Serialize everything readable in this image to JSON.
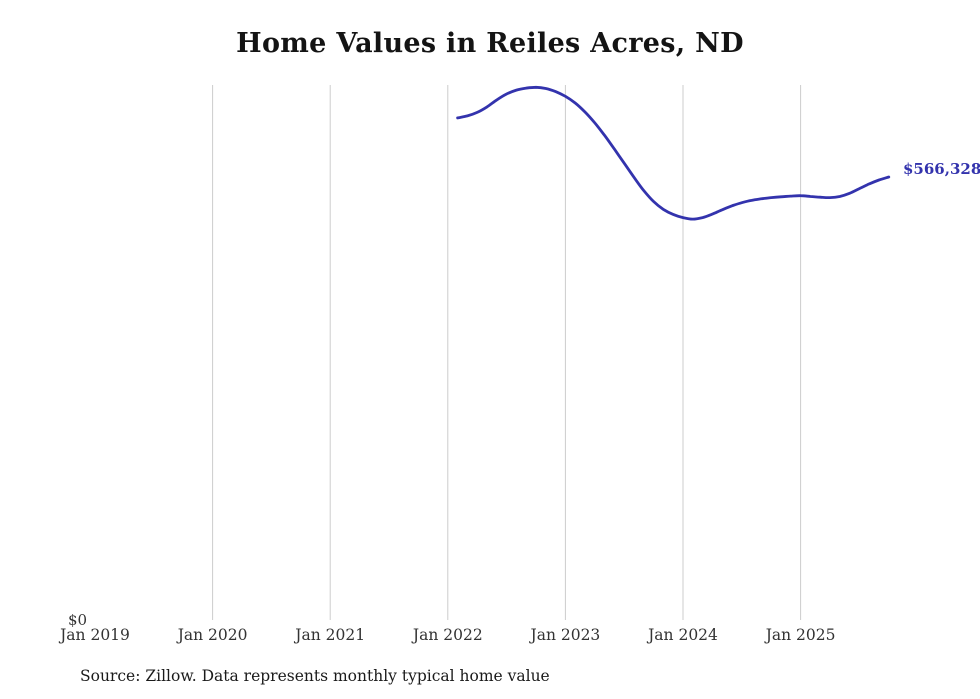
{
  "chart_data": {
    "type": "line",
    "title": "Home Values in Reiles Acres, ND",
    "source_note": "Source: Zillow. Data represents monthly typical home value",
    "y_axis_zero_label": "$0",
    "end_label": "$566,328",
    "latest_value": 566328,
    "ylim": [
      0,
      684000
    ],
    "grid_color": "#cccccc",
    "grid": "vertical-only",
    "legend": "none",
    "x_ticks": [
      {
        "label": "Jan 2019",
        "year": 2019,
        "gridline": false
      },
      {
        "label": "Jan 2020",
        "year": 2020,
        "gridline": true
      },
      {
        "label": "Jan 2021",
        "year": 2021,
        "gridline": true
      },
      {
        "label": "Jan 2022",
        "year": 2022,
        "gridline": true
      },
      {
        "label": "Jan 2023",
        "year": 2023,
        "gridline": true
      },
      {
        "label": "Jan 2024",
        "year": 2024,
        "gridline": true
      },
      {
        "label": "Jan 2025",
        "year": 2025,
        "gridline": true
      }
    ],
    "series": [
      {
        "name": "Typical home value",
        "color": "#3333ad",
        "months": [
          "2022-02",
          "2022-03",
          "2022-04",
          "2022-05",
          "2022-06",
          "2022-07",
          "2022-08",
          "2022-09",
          "2022-10",
          "2022-11",
          "2022-12",
          "2023-01",
          "2023-02",
          "2023-03",
          "2023-04",
          "2023-05",
          "2023-06",
          "2023-07",
          "2023-08",
          "2023-09",
          "2023-10",
          "2023-11",
          "2023-12",
          "2024-01",
          "2024-02",
          "2024-03",
          "2024-04",
          "2024-05",
          "2024-06",
          "2024-07",
          "2024-08",
          "2024-09",
          "2024-10",
          "2024-11",
          "2024-12",
          "2025-01",
          "2025-02",
          "2025-03",
          "2025-04",
          "2025-05",
          "2025-06",
          "2025-07",
          "2025-08",
          "2025-09",
          "2025-10"
        ],
        "values": [
          642000,
          644500,
          649000,
          656000,
          665000,
          672500,
          677500,
          680000,
          681000,
          679500,
          675500,
          669500,
          661000,
          649500,
          635500,
          619500,
          602000,
          584000,
          566000,
          549000,
          535000,
          525000,
          518500,
          514500,
          512500,
          514500,
          519000,
          524500,
          529500,
          533500,
          536500,
          538500,
          540000,
          541000,
          542000,
          542500,
          541500,
          540500,
          540000,
          541500,
          545500,
          551500,
          557500,
          562500,
          566328
        ]
      }
    ]
  }
}
